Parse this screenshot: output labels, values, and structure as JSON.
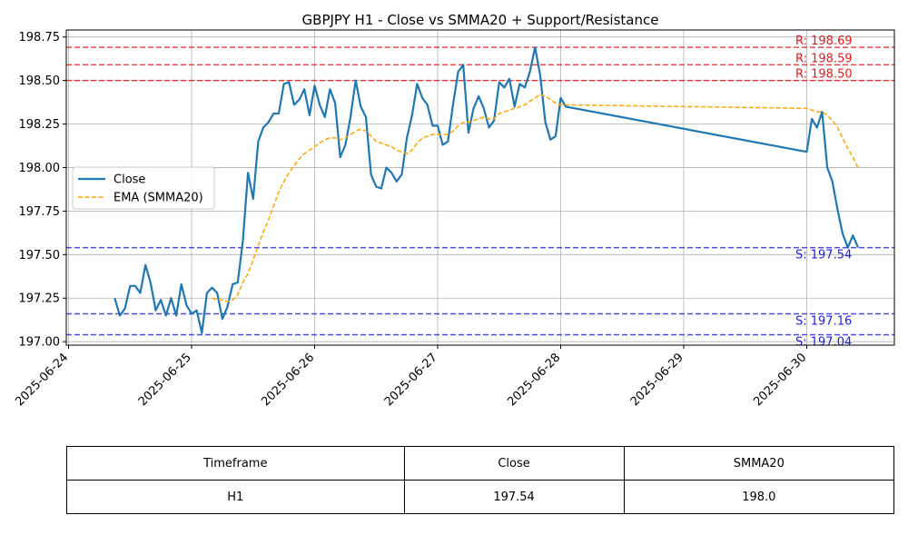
{
  "chart_data": {
    "type": "line",
    "title": "GBPJPY H1 - Close vs SMMA20 + Support/Resistance",
    "xlabel": "",
    "ylabel": "",
    "ylim": [
      196.98,
      198.79
    ],
    "yticks": [
      197.0,
      197.25,
      197.5,
      197.75,
      198.0,
      198.25,
      198.5,
      198.75
    ],
    "ytick_labels": [
      "197.00",
      "197.25",
      "197.50",
      "197.75",
      "198.00",
      "198.25",
      "198.50",
      "198.75"
    ],
    "xticks": [
      "2025-06-24",
      "2025-06-25",
      "2025-06-26",
      "2025-06-27",
      "2025-06-28",
      "2025-06-29",
      "2025-06-30"
    ],
    "grid": true,
    "legend_position": "center-left",
    "series": [
      {
        "name": "Close",
        "color": "#1f77b4",
        "style": "solid",
        "points": [
          [
            "2025-06-24 09:00",
            197.25
          ],
          [
            "2025-06-24 10:00",
            197.15
          ],
          [
            "2025-06-24 11:00",
            197.19
          ],
          [
            "2025-06-24 12:00",
            197.32
          ],
          [
            "2025-06-24 13:00",
            197.32
          ],
          [
            "2025-06-24 14:00",
            197.28
          ],
          [
            "2025-06-24 15:00",
            197.44
          ],
          [
            "2025-06-24 16:00",
            197.34
          ],
          [
            "2025-06-24 17:00",
            197.18
          ],
          [
            "2025-06-24 18:00",
            197.24
          ],
          [
            "2025-06-24 19:00",
            197.15
          ],
          [
            "2025-06-24 20:00",
            197.25
          ],
          [
            "2025-06-24 21:00",
            197.15
          ],
          [
            "2025-06-24 22:00",
            197.33
          ],
          [
            "2025-06-24 23:00",
            197.21
          ],
          [
            "2025-06-25 00:00",
            197.16
          ],
          [
            "2025-06-25 01:00",
            197.18
          ],
          [
            "2025-06-25 02:00",
            197.05
          ],
          [
            "2025-06-25 03:00",
            197.28
          ],
          [
            "2025-06-25 04:00",
            197.31
          ],
          [
            "2025-06-25 05:00",
            197.28
          ],
          [
            "2025-06-25 06:00",
            197.13
          ],
          [
            "2025-06-25 07:00",
            197.2
          ],
          [
            "2025-06-25 08:00",
            197.33
          ],
          [
            "2025-06-25 09:00",
            197.34
          ],
          [
            "2025-06-25 10:00",
            197.58
          ],
          [
            "2025-06-25 11:00",
            197.97
          ],
          [
            "2025-06-25 12:00",
            197.82
          ],
          [
            "2025-06-25 13:00",
            198.15
          ],
          [
            "2025-06-25 14:00",
            198.23
          ],
          [
            "2025-06-25 15:00",
            198.26
          ],
          [
            "2025-06-25 16:00",
            198.31
          ],
          [
            "2025-06-25 17:00",
            198.31
          ],
          [
            "2025-06-25 18:00",
            198.48
          ],
          [
            "2025-06-25 19:00",
            198.49
          ],
          [
            "2025-06-25 20:00",
            198.36
          ],
          [
            "2025-06-25 21:00",
            198.39
          ],
          [
            "2025-06-25 22:00",
            198.45
          ],
          [
            "2025-06-25 23:00",
            198.3
          ],
          [
            "2025-06-26 00:00",
            198.47
          ],
          [
            "2025-06-26 01:00",
            198.36
          ],
          [
            "2025-06-26 02:00",
            198.29
          ],
          [
            "2025-06-26 03:00",
            198.45
          ],
          [
            "2025-06-26 04:00",
            198.37
          ],
          [
            "2025-06-26 05:00",
            198.06
          ],
          [
            "2025-06-26 06:00",
            198.13
          ],
          [
            "2025-06-26 07:00",
            198.29
          ],
          [
            "2025-06-26 08:00",
            198.5
          ],
          [
            "2025-06-26 09:00",
            198.35
          ],
          [
            "2025-06-26 10:00",
            198.29
          ],
          [
            "2025-06-26 11:00",
            197.96
          ],
          [
            "2025-06-26 12:00",
            197.89
          ],
          [
            "2025-06-26 13:00",
            197.88
          ],
          [
            "2025-06-26 14:00",
            198.0
          ],
          [
            "2025-06-26 15:00",
            197.97
          ],
          [
            "2025-06-26 16:00",
            197.92
          ],
          [
            "2025-06-26 17:00",
            197.96
          ],
          [
            "2025-06-26 18:00",
            198.17
          ],
          [
            "2025-06-26 19:00",
            198.3
          ],
          [
            "2025-06-26 20:00",
            198.48
          ],
          [
            "2025-06-26 21:00",
            198.4
          ],
          [
            "2025-06-26 22:00",
            198.36
          ],
          [
            "2025-06-26 23:00",
            198.24
          ],
          [
            "2025-06-27 00:00",
            198.24
          ],
          [
            "2025-06-27 01:00",
            198.13
          ],
          [
            "2025-06-27 02:00",
            198.15
          ],
          [
            "2025-06-27 03:00",
            198.36
          ],
          [
            "2025-06-27 04:00",
            198.55
          ],
          [
            "2025-06-27 05:00",
            198.59
          ],
          [
            "2025-06-27 06:00",
            198.2
          ],
          [
            "2025-06-27 07:00",
            198.34
          ],
          [
            "2025-06-27 08:00",
            198.41
          ],
          [
            "2025-06-27 09:00",
            198.34
          ],
          [
            "2025-06-27 10:00",
            198.23
          ],
          [
            "2025-06-27 11:00",
            198.27
          ],
          [
            "2025-06-27 12:00",
            198.49
          ],
          [
            "2025-06-27 13:00",
            198.46
          ],
          [
            "2025-06-27 14:00",
            198.51
          ],
          [
            "2025-06-27 15:00",
            198.35
          ],
          [
            "2025-06-27 16:00",
            198.48
          ],
          [
            "2025-06-27 17:00",
            198.46
          ],
          [
            "2025-06-27 18:00",
            198.55
          ],
          [
            "2025-06-27 19:00",
            198.69
          ],
          [
            "2025-06-27 20:00",
            198.53
          ],
          [
            "2025-06-27 21:00",
            198.26
          ],
          [
            "2025-06-27 22:00",
            198.16
          ],
          [
            "2025-06-27 23:00",
            198.18
          ],
          [
            "2025-06-28 00:00",
            198.4
          ],
          [
            "2025-06-28 01:00",
            198.35
          ],
          [
            "2025-06-30 00:00",
            198.09
          ],
          [
            "2025-06-30 01:00",
            198.28
          ],
          [
            "2025-06-30 02:00",
            198.23
          ],
          [
            "2025-06-30 03:00",
            198.32
          ],
          [
            "2025-06-30 04:00",
            198.0
          ],
          [
            "2025-06-30 05:00",
            197.92
          ],
          [
            "2025-06-30 06:00",
            197.76
          ],
          [
            "2025-06-30 07:00",
            197.62
          ],
          [
            "2025-06-30 08:00",
            197.54
          ],
          [
            "2025-06-30 09:00",
            197.61
          ],
          [
            "2025-06-30 10:00",
            197.54
          ]
        ]
      },
      {
        "name": "EMA (SMMA20)",
        "color": "#ffa500",
        "style": "dashed",
        "points": [
          [
            "2025-06-25 04:00",
            197.25
          ],
          [
            "2025-06-25 05:00",
            197.24
          ],
          [
            "2025-06-25 06:00",
            197.24
          ],
          [
            "2025-06-25 07:00",
            197.23
          ],
          [
            "2025-06-25 08:00",
            197.24
          ],
          [
            "2025-06-25 09:00",
            197.27
          ],
          [
            "2025-06-25 10:00",
            197.34
          ],
          [
            "2025-06-25 11:00",
            197.39
          ],
          [
            "2025-06-25 12:00",
            197.47
          ],
          [
            "2025-06-25 13:00",
            197.55
          ],
          [
            "2025-06-25 14:00",
            197.63
          ],
          [
            "2025-06-25 15:00",
            197.7
          ],
          [
            "2025-06-25 16:00",
            197.78
          ],
          [
            "2025-06-25 17:00",
            197.86
          ],
          [
            "2025-06-25 18:00",
            197.92
          ],
          [
            "2025-06-25 19:00",
            197.97
          ],
          [
            "2025-06-25 20:00",
            198.01
          ],
          [
            "2025-06-25 21:00",
            198.05
          ],
          [
            "2025-06-25 22:00",
            198.08
          ],
          [
            "2025-06-25 23:00",
            198.1
          ],
          [
            "2025-06-26 00:00",
            198.12
          ],
          [
            "2025-06-26 01:00",
            198.14
          ],
          [
            "2025-06-26 02:00",
            198.16
          ],
          [
            "2025-06-26 03:00",
            198.17
          ],
          [
            "2025-06-26 04:00",
            198.17
          ],
          [
            "2025-06-26 05:00",
            198.16
          ],
          [
            "2025-06-26 06:00",
            198.17
          ],
          [
            "2025-06-26 07:00",
            198.19
          ],
          [
            "2025-06-26 08:00",
            198.21
          ],
          [
            "2025-06-26 09:00",
            198.22
          ],
          [
            "2025-06-26 10:00",
            198.21
          ],
          [
            "2025-06-26 11:00",
            198.18
          ],
          [
            "2025-06-26 12:00",
            198.15
          ],
          [
            "2025-06-26 13:00",
            198.14
          ],
          [
            "2025-06-26 14:00",
            198.13
          ],
          [
            "2025-06-26 15:00",
            198.12
          ],
          [
            "2025-06-26 16:00",
            198.1
          ],
          [
            "2025-06-26 17:00",
            198.09
          ],
          [
            "2025-06-26 18:00",
            198.08
          ],
          [
            "2025-06-26 19:00",
            198.1
          ],
          [
            "2025-06-26 20:00",
            198.14
          ],
          [
            "2025-06-26 21:00",
            198.17
          ],
          [
            "2025-06-26 22:00",
            198.18
          ],
          [
            "2025-06-26 23:00",
            198.19
          ],
          [
            "2025-06-27 00:00",
            198.19
          ],
          [
            "2025-06-27 01:00",
            198.19
          ],
          [
            "2025-06-27 02:00",
            198.19
          ],
          [
            "2025-06-27 03:00",
            198.21
          ],
          [
            "2025-06-27 04:00",
            198.24
          ],
          [
            "2025-06-27 05:00",
            198.26
          ],
          [
            "2025-06-27 06:00",
            198.26
          ],
          [
            "2025-06-27 07:00",
            198.27
          ],
          [
            "2025-06-27 08:00",
            198.28
          ],
          [
            "2025-06-27 09:00",
            198.29
          ],
          [
            "2025-06-27 10:00",
            198.28
          ],
          [
            "2025-06-27 11:00",
            198.28
          ],
          [
            "2025-06-27 12:00",
            198.31
          ],
          [
            "2025-06-27 13:00",
            198.32
          ],
          [
            "2025-06-27 14:00",
            198.33
          ],
          [
            "2025-06-27 15:00",
            198.34
          ],
          [
            "2025-06-27 16:00",
            198.35
          ],
          [
            "2025-06-27 17:00",
            198.36
          ],
          [
            "2025-06-27 18:00",
            198.38
          ],
          [
            "2025-06-27 19:00",
            198.4
          ],
          [
            "2025-06-27 20:00",
            198.42
          ],
          [
            "2025-06-27 21:00",
            198.41
          ],
          [
            "2025-06-27 22:00",
            198.39
          ],
          [
            "2025-06-27 23:00",
            198.37
          ],
          [
            "2025-06-28 00:00",
            198.36
          ],
          [
            "2025-06-28 01:00",
            198.36
          ],
          [
            "2025-06-30 00:00",
            198.34
          ],
          [
            "2025-06-30 01:00",
            198.33
          ],
          [
            "2025-06-30 02:00",
            198.32
          ],
          [
            "2025-06-30 03:00",
            198.32
          ],
          [
            "2025-06-30 04:00",
            198.3
          ],
          [
            "2025-06-30 05:00",
            198.27
          ],
          [
            "2025-06-30 06:00",
            198.23
          ],
          [
            "2025-06-30 07:00",
            198.17
          ],
          [
            "2025-06-30 08:00",
            198.11
          ],
          [
            "2025-06-30 09:00",
            198.06
          ],
          [
            "2025-06-30 10:00",
            198.0
          ]
        ]
      }
    ],
    "levels": [
      {
        "kind": "resistance",
        "label": "R: 198.69",
        "value": 198.69,
        "color": "#e31a1c"
      },
      {
        "kind": "resistance",
        "label": "R: 198.59",
        "value": 198.59,
        "color": "#e31a1c"
      },
      {
        "kind": "resistance",
        "label": "R: 198.50",
        "value": 198.5,
        "color": "#e31a1c"
      },
      {
        "kind": "support",
        "label": "S: 197.54",
        "value": 197.54,
        "color": "#1f1fe3"
      },
      {
        "kind": "support",
        "label": "S: 197.16",
        "value": 197.16,
        "color": "#1f1fe3"
      },
      {
        "kind": "support",
        "label": "S: 197.04",
        "value": 197.04,
        "color": "#1f1fe3"
      }
    ]
  },
  "summary_table": {
    "headers": [
      "Timeframe",
      "Close",
      "SMMA20"
    ],
    "row": [
      "H1",
      "197.54",
      "198.0"
    ]
  }
}
